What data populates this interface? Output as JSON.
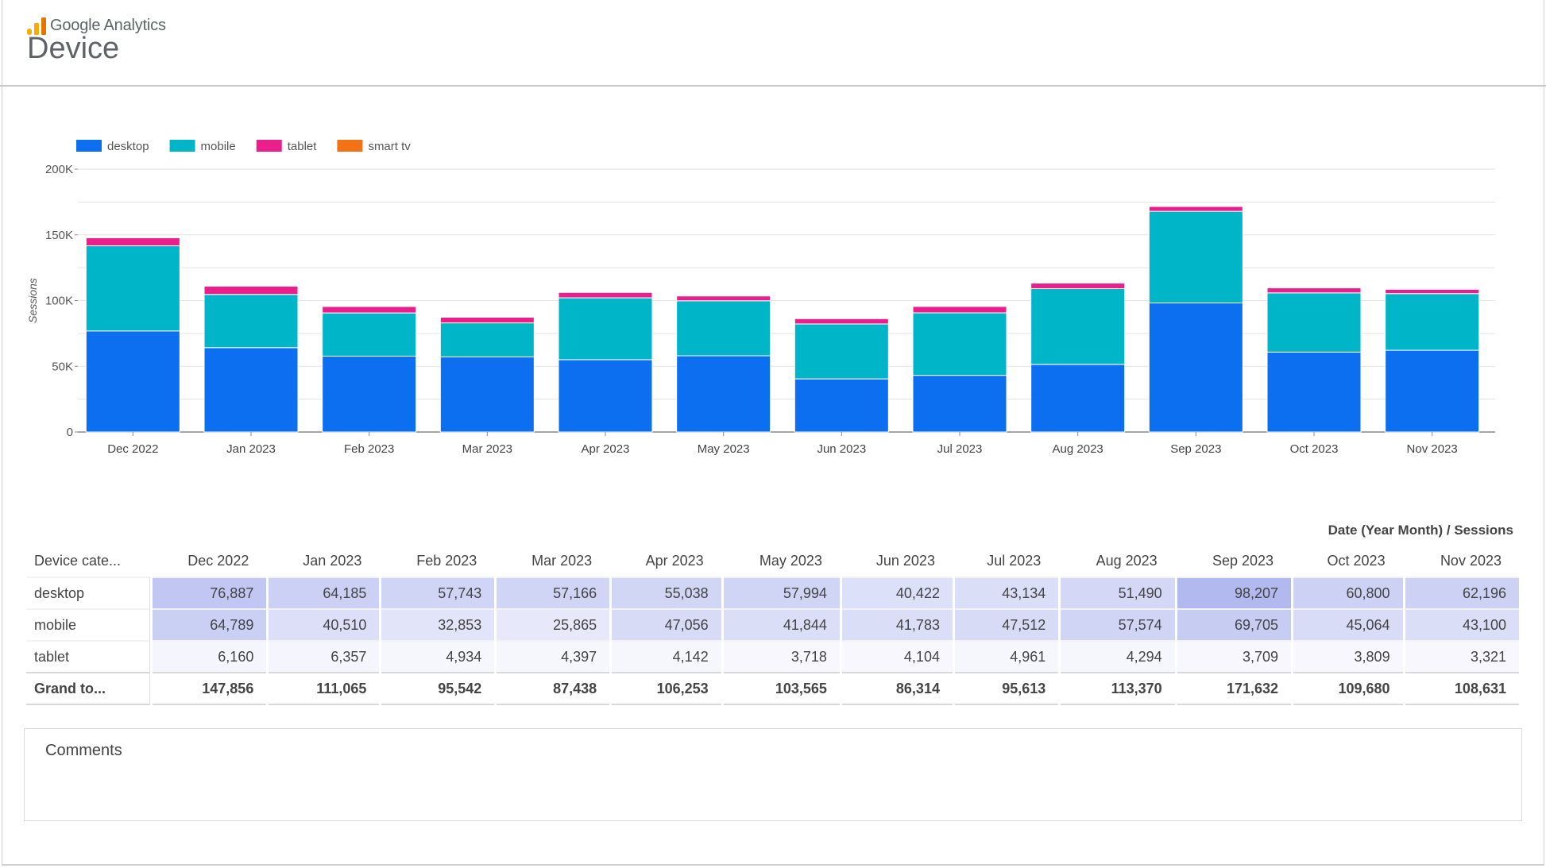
{
  "app": {
    "brand": "Google Analytics",
    "page_title": "Device"
  },
  "colors": {
    "desktop": "#1a73e8",
    "mobile": "#00b5c8",
    "tablet": "#ff0e9b",
    "smart_tv": "#ff6d00"
  },
  "chart_data": {
    "type": "bar",
    "stacked": true,
    "categories": [
      "Dec 2022",
      "Jan 2023",
      "Feb 2023",
      "Mar 2023",
      "Apr 2023",
      "May 2023",
      "Jun 2023",
      "Jul 2023",
      "Aug 2023",
      "Sep 2023",
      "Oct 2023",
      "Nov 2023"
    ],
    "series": [
      {
        "name": "desktop",
        "color": "#0b6ff0",
        "values": [
          76887,
          64185,
          57743,
          57166,
          55038,
          57994,
          40422,
          43134,
          51490,
          98207,
          60800,
          62196
        ]
      },
      {
        "name": "mobile",
        "color": "#00b5c8",
        "values": [
          64789,
          40510,
          32853,
          25865,
          47056,
          41844,
          41783,
          47512,
          57574,
          69705,
          45064,
          43100
        ]
      },
      {
        "name": "tablet",
        "color": "#ea1f8c",
        "values": [
          6160,
          6357,
          4934,
          4397,
          4142,
          3718,
          4104,
          4961,
          4294,
          3709,
          3809,
          3321
        ]
      },
      {
        "name": "smart tv",
        "color": "#f47216",
        "values": [
          20,
          13,
          12,
          10,
          17,
          9,
          5,
          6,
          12,
          11,
          7,
          14
        ]
      }
    ],
    "ylabel": "Sessions",
    "ylim": [
      0,
      200000
    ],
    "yticks": [
      0,
      50000,
      100000,
      150000,
      200000
    ],
    "ytick_labels": [
      "0",
      "50K",
      "100K",
      "150K",
      "200K"
    ],
    "legend_position": "top-left",
    "grid": true
  },
  "table": {
    "caption": "Date (Year Month) / Sessions",
    "row_header": "Device cate...",
    "columns": [
      "Dec 2022",
      "Jan 2023",
      "Feb 2023",
      "Mar 2023",
      "Apr 2023",
      "May 2023",
      "Jun 2023",
      "Jul 2023",
      "Aug 2023",
      "Sep 2023",
      "Oct 2023",
      "Nov 2023"
    ],
    "rows": [
      {
        "label": "desktop",
        "cells": [
          "76,887",
          "64,185",
          "57,743",
          "57,166",
          "55,038",
          "57,994",
          "40,422",
          "43,134",
          "51,490",
          "98,207",
          "60,800",
          "62,196"
        ],
        "values": [
          76887,
          64185,
          57743,
          57166,
          55038,
          57994,
          40422,
          43134,
          51490,
          98207,
          60800,
          62196
        ]
      },
      {
        "label": "mobile",
        "cells": [
          "64,789",
          "40,510",
          "32,853",
          "25,865",
          "47,056",
          "41,844",
          "41,783",
          "47,512",
          "57,574",
          "69,705",
          "45,064",
          "43,100"
        ],
        "values": [
          64789,
          40510,
          32853,
          25865,
          47056,
          41844,
          41783,
          47512,
          57574,
          69705,
          45064,
          43100
        ]
      },
      {
        "label": "tablet",
        "cells": [
          "6,160",
          "6,357",
          "4,934",
          "4,397",
          "4,142",
          "3,718",
          "4,104",
          "4,961",
          "4,294",
          "3,709",
          "3,809",
          "3,321"
        ],
        "values": [
          6160,
          6357,
          4934,
          4397,
          4142,
          3718,
          4104,
          4961,
          4294,
          3709,
          3809,
          3321
        ]
      }
    ],
    "total": {
      "label": "Grand to...",
      "cells": [
        "147,856",
        "111,065",
        "95,542",
        "87,438",
        "106,253",
        "103,565",
        "86,314",
        "95,613",
        "113,370",
        "171,632",
        "109,680",
        "108,631"
      ]
    },
    "heatmap_color": "#3f51d6"
  },
  "comments": {
    "label": "Comments"
  }
}
